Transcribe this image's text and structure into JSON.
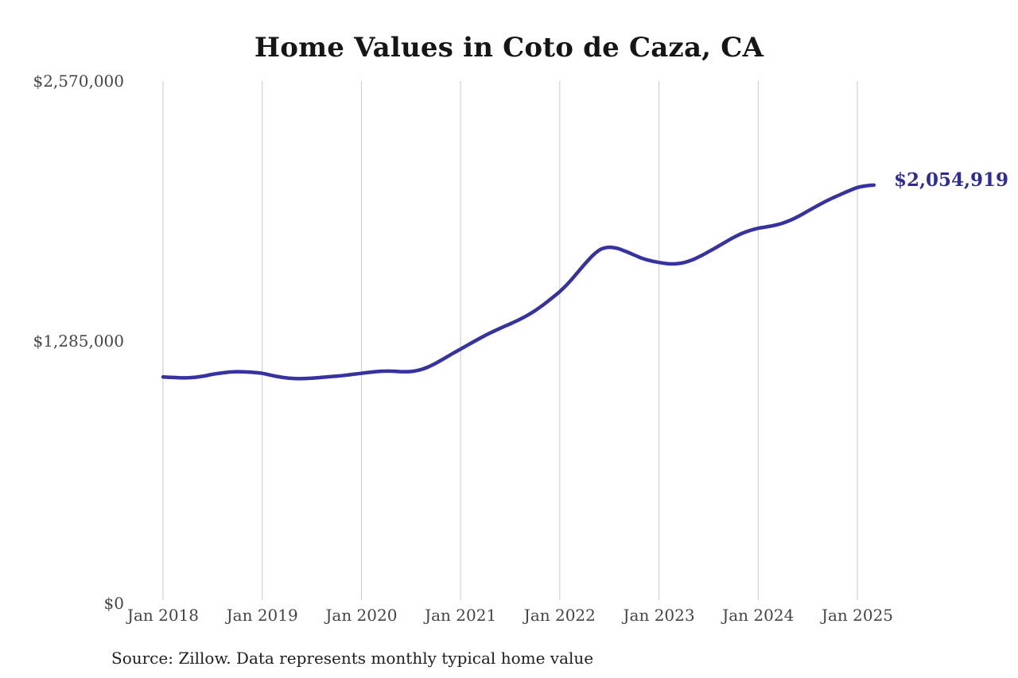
{
  "page": {
    "title": "Home Values in Coto de Caza, CA",
    "latest_value_label": "$2,054,919",
    "source_note": "Source: Zillow. Data represents monthly typical home value"
  },
  "colors": {
    "line": "#3632a0",
    "latest_value_label": "#2e2b96",
    "grid": "#c8c8c8",
    "axis_text": "#454545",
    "title_text": "#161616",
    "source_text": "#202020",
    "background": "#ffffff"
  },
  "chart_data": {
    "type": "line",
    "title": "Home Values in Coto de Caza, CA",
    "xlabel": "",
    "ylabel": "",
    "ylim": [
      0,
      2570000
    ],
    "y_tick_labels": [
      "$0",
      "$1,285,000",
      "$2,570,000"
    ],
    "y_tick_values": [
      0,
      1285000,
      2570000
    ],
    "x_tick_labels": [
      "Jan 2018",
      "Jan 2019",
      "Jan 2020",
      "Jan 2021",
      "Jan 2022",
      "Jan 2023",
      "Jan 2024",
      "Jan 2025"
    ],
    "grid": "vertical-only",
    "legend": "none",
    "annotation": {
      "text": "$2,054,919",
      "attached_to": "last-point"
    },
    "series": [
      {
        "name": "Monthly typical home value",
        "months": [
          "2018-01",
          "2018-02",
          "2018-03",
          "2018-04",
          "2018-05",
          "2018-06",
          "2018-07",
          "2018-08",
          "2018-09",
          "2018-10",
          "2018-11",
          "2018-12",
          "2019-01",
          "2019-02",
          "2019-03",
          "2019-04",
          "2019-05",
          "2019-06",
          "2019-07",
          "2019-08",
          "2019-09",
          "2019-10",
          "2019-11",
          "2019-12",
          "2020-01",
          "2020-02",
          "2020-03",
          "2020-04",
          "2020-05",
          "2020-06",
          "2020-07",
          "2020-08",
          "2020-09",
          "2020-10",
          "2020-11",
          "2020-12",
          "2021-01",
          "2021-02",
          "2021-03",
          "2021-04",
          "2021-05",
          "2021-06",
          "2021-07",
          "2021-08",
          "2021-09",
          "2021-10",
          "2021-11",
          "2021-12",
          "2022-01",
          "2022-02",
          "2022-03",
          "2022-04",
          "2022-05",
          "2022-06",
          "2022-07",
          "2022-08",
          "2022-09",
          "2022-10",
          "2022-11",
          "2022-12",
          "2023-01",
          "2023-02",
          "2023-03",
          "2023-04",
          "2023-05",
          "2023-06",
          "2023-07",
          "2023-08",
          "2023-09",
          "2023-10",
          "2023-11",
          "2023-12",
          "2024-01",
          "2024-02",
          "2024-03",
          "2024-04",
          "2024-05",
          "2024-06",
          "2024-07",
          "2024-08",
          "2024-09",
          "2024-10",
          "2024-11",
          "2024-12",
          "2025-01",
          "2025-02",
          "2025-03"
        ],
        "values": [
          1105000,
          1103000,
          1101000,
          1101000,
          1104000,
          1110000,
          1118000,
          1124000,
          1129000,
          1131000,
          1130000,
          1127000,
          1123000,
          1114000,
          1106000,
          1100000,
          1097000,
          1097000,
          1099000,
          1102000,
          1106000,
          1109000,
          1113000,
          1118000,
          1123000,
          1128000,
          1132000,
          1134000,
          1133000,
          1131000,
          1132000,
          1139000,
          1153000,
          1173000,
          1196000,
          1220000,
          1243000,
          1266000,
          1289000,
          1311000,
          1331000,
          1350000,
          1368000,
          1387000,
          1408000,
          1433000,
          1462000,
          1494000,
          1528000,
          1568000,
          1615000,
          1663000,
          1707000,
          1738000,
          1747000,
          1741000,
          1726000,
          1709000,
          1692000,
          1680000,
          1672000,
          1666000,
          1665000,
          1671000,
          1684000,
          1703000,
          1725000,
          1748000,
          1772000,
          1795000,
          1815000,
          1830000,
          1841000,
          1848000,
          1856000,
          1867000,
          1883000,
          1903000,
          1926000,
          1949000,
          1971000,
          1991000,
          2009000,
          2027000,
          2043000,
          2051000,
          2054919
        ]
      }
    ],
    "final_value": 2054919,
    "final_value_label": "$2,054,919"
  }
}
